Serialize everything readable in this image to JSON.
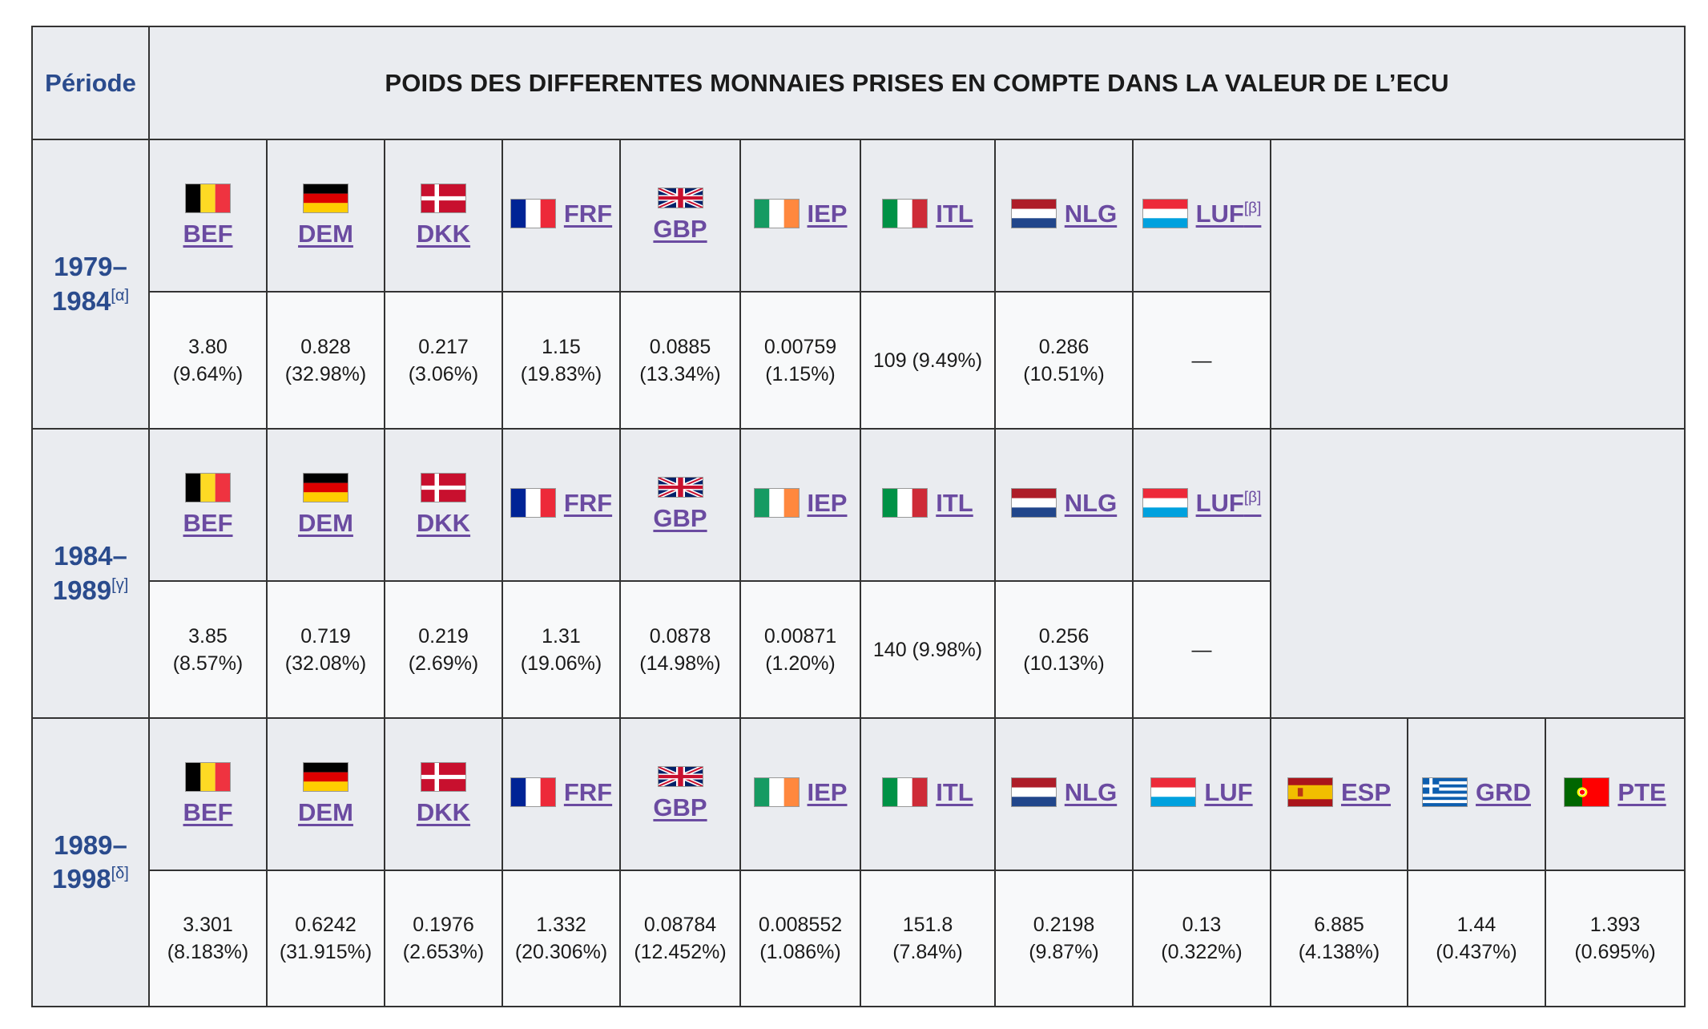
{
  "header": {
    "period_label": "Période",
    "title": "POIDS DES DIFFERENTES MONNAIES PRISES EN COMPTE DANS LA VALEUR DE L’ECU"
  },
  "colors": {
    "header_bg": "#eaecf0",
    "cell_bg": "#f8f9fa",
    "link": "#6b4ba1",
    "period_text": "#2a4b8d"
  },
  "rows": [
    {
      "period": "1979–1984",
      "note": "[α]",
      "currencies": [
        {
          "code": "BEF",
          "sup": "",
          "icon": "belgium-flag-icon",
          "layout": "stacked",
          "value": "3.80",
          "pct": "(9.64%)"
        },
        {
          "code": "DEM",
          "sup": "",
          "icon": "germany-flag-icon",
          "layout": "stacked",
          "value": "0.828",
          "pct": "(32.98%)"
        },
        {
          "code": "DKK",
          "sup": "",
          "icon": "denmark-flag-icon",
          "layout": "stacked",
          "value": "0.217",
          "pct": "(3.06%)"
        },
        {
          "code": "FRF",
          "sup": "",
          "icon": "france-flag-icon",
          "layout": "inline",
          "value": "1.15",
          "pct": "(19.83%)"
        },
        {
          "code": "GBP",
          "sup": "",
          "icon": "uk-flag-icon",
          "layout": "stacked",
          "value": "0.0885",
          "pct": "(13.34%)"
        },
        {
          "code": "IEP",
          "sup": "",
          "icon": "ireland-flag-icon",
          "layout": "inline",
          "value": "0.00759",
          "pct": "(1.15%)"
        },
        {
          "code": "ITL",
          "sup": "",
          "icon": "italy-flag-icon",
          "layout": "inline",
          "value": "109 (9.49%)",
          "pct": ""
        },
        {
          "code": "NLG",
          "sup": "",
          "icon": "netherlands-flag-icon",
          "layout": "inline",
          "value": "0.286",
          "pct": "(10.51%)"
        },
        {
          "code": "LUF",
          "sup": "[β]",
          "icon": "luxembourg-flag-icon",
          "layout": "inline",
          "value": "—",
          "pct": ""
        }
      ]
    },
    {
      "period": "1984–1989",
      "note": "[γ]",
      "currencies": [
        {
          "code": "BEF",
          "sup": "",
          "icon": "belgium-flag-icon",
          "layout": "stacked",
          "value": "3.85",
          "pct": "(8.57%)"
        },
        {
          "code": "DEM",
          "sup": "",
          "icon": "germany-flag-icon",
          "layout": "stacked",
          "value": "0.719",
          "pct": "(32.08%)"
        },
        {
          "code": "DKK",
          "sup": "",
          "icon": "denmark-flag-icon",
          "layout": "stacked",
          "value": "0.219",
          "pct": "(2.69%)"
        },
        {
          "code": "FRF",
          "sup": "",
          "icon": "france-flag-icon",
          "layout": "inline",
          "value": "1.31",
          "pct": "(19.06%)"
        },
        {
          "code": "GBP",
          "sup": "",
          "icon": "uk-flag-icon",
          "layout": "stacked",
          "value": "0.0878",
          "pct": "(14.98%)"
        },
        {
          "code": "IEP",
          "sup": "",
          "icon": "ireland-flag-icon",
          "layout": "inline",
          "value": "0.00871",
          "pct": "(1.20%)"
        },
        {
          "code": "ITL",
          "sup": "",
          "icon": "italy-flag-icon",
          "layout": "inline",
          "value": "140 (9.98%)",
          "pct": ""
        },
        {
          "code": "NLG",
          "sup": "",
          "icon": "netherlands-flag-icon",
          "layout": "inline",
          "value": "0.256",
          "pct": "(10.13%)"
        },
        {
          "code": "LUF",
          "sup": "[β]",
          "icon": "luxembourg-flag-icon",
          "layout": "inline",
          "value": "—",
          "pct": ""
        }
      ]
    },
    {
      "period": "1989–1998",
      "note": "[δ]",
      "currencies": [
        {
          "code": "BEF",
          "sup": "",
          "icon": "belgium-flag-icon",
          "layout": "stacked",
          "value": "3.301",
          "pct": "(8.183%)"
        },
        {
          "code": "DEM",
          "sup": "",
          "icon": "germany-flag-icon",
          "layout": "stacked",
          "value": "0.6242",
          "pct": "(31.915%)"
        },
        {
          "code": "DKK",
          "sup": "",
          "icon": "denmark-flag-icon",
          "layout": "stacked",
          "value": "0.1976",
          "pct": "(2.653%)"
        },
        {
          "code": "FRF",
          "sup": "",
          "icon": "france-flag-icon",
          "layout": "inline",
          "value": "1.332",
          "pct": "(20.306%)"
        },
        {
          "code": "GBP",
          "sup": "",
          "icon": "uk-flag-icon",
          "layout": "stacked",
          "value": "0.08784",
          "pct": "(12.452%)"
        },
        {
          "code": "IEP",
          "sup": "",
          "icon": "ireland-flag-icon",
          "layout": "inline",
          "value": "0.008552",
          "pct": "(1.086%)"
        },
        {
          "code": "ITL",
          "sup": "",
          "icon": "italy-flag-icon",
          "layout": "inline",
          "value": "151.8",
          "pct": "(7.84%)"
        },
        {
          "code": "NLG",
          "sup": "",
          "icon": "netherlands-flag-icon",
          "layout": "inline",
          "value": "0.2198",
          "pct": "(9.87%)"
        },
        {
          "code": "LUF",
          "sup": "",
          "icon": "luxembourg-flag-icon",
          "layout": "inline",
          "value": "0.13",
          "pct": "(0.322%)"
        },
        {
          "code": "ESP",
          "sup": "",
          "icon": "spain-flag-icon",
          "layout": "inline",
          "value": "6.885",
          "pct": "(4.138%)"
        },
        {
          "code": "GRD",
          "sup": "",
          "icon": "greece-flag-icon",
          "layout": "inline",
          "value": "1.44",
          "pct": "(0.437%)"
        },
        {
          "code": "PTE",
          "sup": "",
          "icon": "portugal-flag-icon",
          "layout": "inline",
          "value": "1.393",
          "pct": "(0.695%)"
        }
      ]
    }
  ]
}
